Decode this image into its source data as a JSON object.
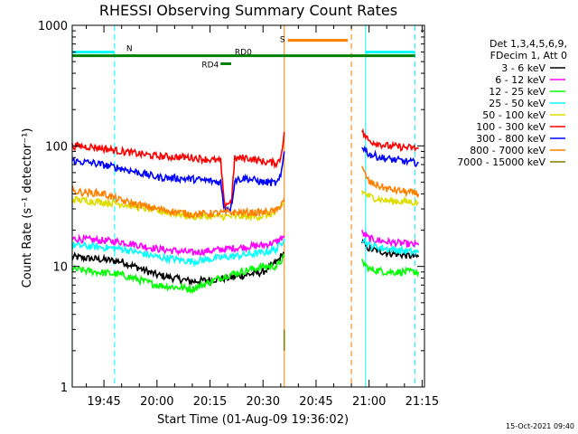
{
  "chart_data": {
    "type": "line",
    "title": "RHESSI Observing Summary Count Rates",
    "xlabel": "Start Time (01-Aug-09 19:36:02)",
    "ylabel": "Count Rate (s⁻¹ detector⁻¹)",
    "yscale": "log",
    "ylim": [
      1,
      1000
    ],
    "xlim": [
      "19:36:02",
      "21:15:40"
    ],
    "x_ticks": [
      "19:45",
      "20:00",
      "20:15",
      "20:30",
      "20:45",
      "21:00",
      "21:15"
    ],
    "y_ticks": [
      "1",
      "10",
      "100",
      "1000"
    ],
    "legend": {
      "placement": "right",
      "header": [
        "Det 1,3,4,5,6,9,",
        "FDecim 1, Att 0"
      ]
    },
    "timestamp": "15-Oct-2021 09:40",
    "series": [
      {
        "name": "3 - 6 keV",
        "color": "#000000",
        "segments": [
          {
            "x": [
              "19:36",
              "19:50",
              "20:00",
              "20:10",
              "20:20",
              "20:30",
              "20:34",
              "20:36"
            ],
            "y": [
              12,
              11,
              8.5,
              7.5,
              8,
              9,
              11,
              13
            ]
          },
          {
            "x": [
              "20:58",
              "21:00",
              "21:05",
              "21:14"
            ],
            "y": [
              16,
              14,
              13,
              12
            ]
          }
        ]
      },
      {
        "name": "6 - 12 keV",
        "color": "#ff00ff",
        "segments": [
          {
            "x": [
              "19:36",
              "19:50",
              "20:00",
              "20:10",
              "20:20",
              "20:30",
              "20:34",
              "20:36"
            ],
            "y": [
              17,
              16,
              14,
              13,
              14,
              15,
              16,
              18
            ]
          },
          {
            "x": [
              "20:58",
              "21:00",
              "21:05",
              "21:14"
            ],
            "y": [
              19,
              17,
              16,
              15
            ]
          }
        ]
      },
      {
        "name": "12 - 25 keV",
        "color": "#00ff00",
        "segments": [
          {
            "x": [
              "19:36",
              "19:50",
              "20:00",
              "20:10",
              "20:20",
              "20:30",
              "20:34",
              "20:36"
            ],
            "y": [
              9.5,
              8.5,
              7,
              6.5,
              8.5,
              10,
              10,
              12
            ]
          },
          {
            "x": [
              "20:58",
              "21:00",
              "21:05",
              "21:14"
            ],
            "y": [
              11,
              9.5,
              9,
              9
            ]
          }
        ]
      },
      {
        "name": "25 - 50 keV",
        "color": "#00ffff",
        "segments": [
          {
            "x": [
              "19:36",
              "19:50",
              "20:00",
              "20:10",
              "20:20",
              "20:30",
              "20:34",
              "20:36"
            ],
            "y": [
              15,
              14,
              12,
              11,
              12,
              13,
              14,
              17
            ]
          },
          {
            "x": [
              "20:58",
              "21:00",
              "21:05",
              "21:14"
            ],
            "y": [
              17,
              15,
              14,
              13
            ]
          }
        ]
      },
      {
        "name": "50 - 100 keV",
        "color": "#dddd00",
        "segments": [
          {
            "x": [
              "19:36",
              "19:50",
              "20:00",
              "20:10",
              "20:20",
              "20:30",
              "20:34",
              "20:36"
            ],
            "y": [
              36,
              33,
              29,
              26,
              26,
              26,
              28,
              34
            ]
          },
          {
            "x": [
              "20:58",
              "21:00",
              "21:05",
              "21:14"
            ],
            "y": [
              42,
              38,
              35,
              34
            ]
          }
        ]
      },
      {
        "name": "100 - 300 keV",
        "color": "#ff0000",
        "segments": [
          {
            "x": [
              "19:36",
              "19:42",
              "19:50",
              "20:00",
              "20:10",
              "20:18",
              "20:19",
              "20:21",
              "20:22",
              "20:25",
              "20:30",
              "20:34",
              "20:35",
              "20:36"
            ],
            "y": [
              100,
              98,
              90,
              82,
              80,
              75,
              33,
              34,
              78,
              80,
              74,
              72,
              80,
              130
            ]
          },
          {
            "x": [
              "20:58",
              "21:00",
              "21:05",
              "21:14"
            ],
            "y": [
              130,
              110,
              100,
              95
            ]
          }
        ]
      },
      {
        "name": "300 - 800 keV",
        "color": "#0000ff",
        "segments": [
          {
            "x": [
              "19:36",
              "19:42",
              "19:50",
              "20:00",
              "20:10",
              "20:18",
              "20:19",
              "20:21",
              "20:22",
              "20:25",
              "20:30",
              "20:34",
              "20:35",
              "20:36"
            ],
            "y": [
              75,
              72,
              65,
              55,
              53,
              50,
              30,
              31,
              52,
              54,
              50,
              49,
              55,
              90
            ]
          },
          {
            "x": [
              "20:58",
              "21:00",
              "21:05",
              "21:14"
            ],
            "y": [
              100,
              85,
              78,
              72
            ]
          }
        ]
      },
      {
        "name": "800 - 7000 keV",
        "color": "#ff8000",
        "segments": [
          {
            "x": [
              "19:36",
              "19:45",
              "19:50",
              "20:00",
              "20:10",
              "20:20",
              "20:30",
              "20:34",
              "20:36"
            ],
            "y": [
              42,
              40,
              35,
              30,
              27,
              28,
              28,
              29,
              37
            ]
          },
          {
            "x": [
              "20:58",
              "21:00",
              "21:05",
              "21:14"
            ],
            "y": [
              65,
              50,
              44,
              40
            ]
          }
        ]
      },
      {
        "name": "7000 - 15000 keV",
        "color": "#808000",
        "segments": [
          {
            "x": [
              "20:36",
              "20:36"
            ],
            "y": [
              2,
              3
            ]
          }
        ]
      }
    ],
    "vertical_lines": [
      {
        "x": "19:36",
        "color": "#00ffff",
        "style": "solid"
      },
      {
        "x": "19:48",
        "color": "#00ffff",
        "style": "dashed"
      },
      {
        "x": "20:36",
        "color": "#ff8000",
        "style": "solid"
      },
      {
        "x": "20:55",
        "color": "#ff8000",
        "style": "dashed"
      },
      {
        "x": "20:59",
        "color": "#00ffff",
        "style": "solid"
      },
      {
        "x": "21:13",
        "color": "#00ffff",
        "style": "dashed"
      }
    ],
    "status_bars": [
      {
        "label": "N",
        "color": "#00ffff",
        "segments": [
          [
            "19:36",
            "19:48"
          ],
          [
            "20:59",
            "21:13"
          ]
        ],
        "level": 600
      },
      {
        "label": "S",
        "color": "#ff8000",
        "segments": [
          [
            "20:37",
            "20:54"
          ]
        ],
        "level": 750
      },
      {
        "label": "RD0",
        "color": "#008000",
        "segments": [
          [
            "19:36",
            "21:13"
          ]
        ],
        "level": 560
      },
      {
        "label": "RD4",
        "color": "#008000",
        "segments": [
          [
            "20:18",
            "20:21"
          ]
        ],
        "level": 480
      }
    ]
  }
}
